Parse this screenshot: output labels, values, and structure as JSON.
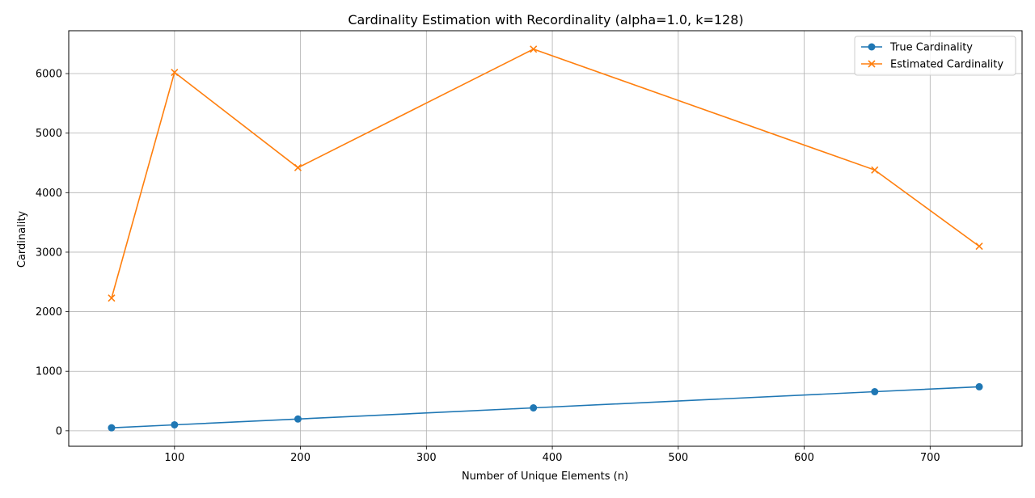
{
  "chart_data": {
    "type": "line",
    "title": "Cardinality Estimation with Recordinality (alpha=1.0, k=128)",
    "xlabel": "Number of Unique Elements (n)",
    "ylabel": "Cardinality",
    "xlim": [
      16,
      773
    ],
    "ylim": [
      -260,
      6720
    ],
    "xticks": [
      100,
      200,
      300,
      400,
      500,
      600,
      700
    ],
    "yticks": [
      0,
      1000,
      2000,
      3000,
      4000,
      5000,
      6000
    ],
    "grid": true,
    "legend_position": "upper right",
    "series": [
      {
        "name": "True Cardinality",
        "marker": "circle",
        "color": "#1f77b4",
        "x": [
          50,
          100,
          198,
          385,
          656,
          739
        ],
        "y": [
          50,
          100,
          198,
          385,
          656,
          739
        ]
      },
      {
        "name": "Estimated Cardinality",
        "marker": "x",
        "color": "#ff7f0e",
        "x": [
          50,
          100,
          198,
          385,
          656,
          739
        ],
        "y": [
          2230,
          6020,
          4420,
          6410,
          4380,
          3100
        ]
      }
    ]
  }
}
